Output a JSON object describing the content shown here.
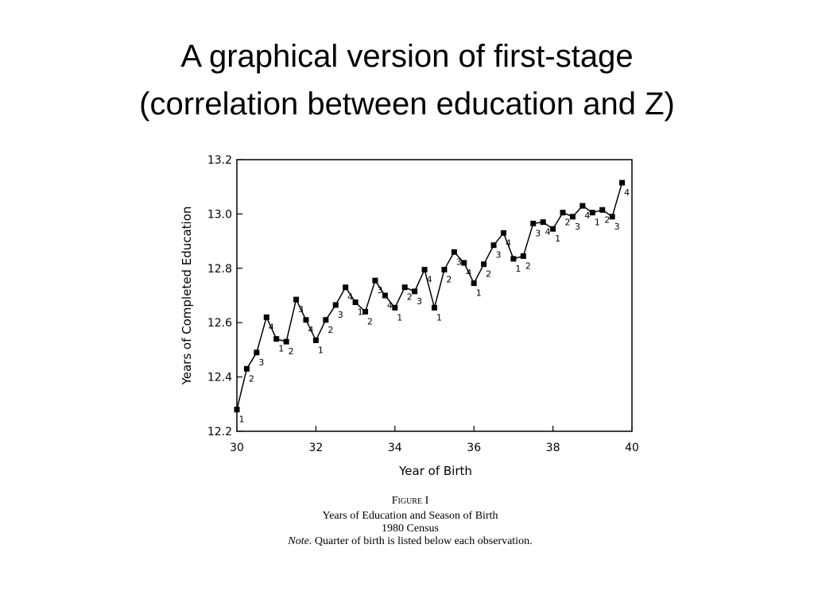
{
  "slide": {
    "title_lines": [
      "A graphical version of first-stage",
      "(correlation between education and Z)"
    ]
  },
  "chart_data": {
    "type": "line",
    "x_label": "Year of Birth",
    "y_label": "Years of Completed Education",
    "x": [
      30,
      30.25,
      30.5,
      30.75,
      31,
      31.25,
      31.5,
      31.75,
      32,
      32.25,
      32.5,
      32.75,
      33,
      33.25,
      33.5,
      33.75,
      34,
      34.25,
      34.5,
      34.75,
      35,
      35.25,
      35.5,
      35.75,
      36,
      36.25,
      36.5,
      36.75,
      37,
      37.25,
      37.5,
      37.75,
      38,
      38.25,
      38.5,
      38.75,
      39,
      39.25,
      39.5,
      39.75
    ],
    "values": [
      12.28,
      12.43,
      12.49,
      12.62,
      12.54,
      12.53,
      12.685,
      12.61,
      12.535,
      12.61,
      12.665,
      12.73,
      12.675,
      12.64,
      12.755,
      12.7,
      12.655,
      12.73,
      12.715,
      12.795,
      12.655,
      12.795,
      12.86,
      12.82,
      12.745,
      12.815,
      12.885,
      12.93,
      12.835,
      12.845,
      12.965,
      12.97,
      12.945,
      13.005,
      12.99,
      13.03,
      13.005,
      13.015,
      12.99,
      13.115
    ],
    "point_labels": [
      "1",
      "2",
      "3",
      "4",
      "1",
      "2",
      "3",
      "4",
      "1",
      "2",
      "3",
      "4",
      "1",
      "2",
      "3",
      "4",
      "1",
      "2",
      "3",
      "4",
      "1",
      "2",
      "3",
      "4",
      "1",
      "2",
      "3",
      "4",
      "1",
      "2",
      "3",
      "4",
      "1",
      "2",
      "3",
      "4",
      "1",
      "2",
      "3",
      "4"
    ],
    "color": "#000000",
    "xlim": [
      30,
      40
    ],
    "xticks": [
      30,
      32,
      34,
      36,
      38,
      40
    ],
    "ylim": [
      12.2,
      13.2
    ],
    "yticks": [
      12.2,
      12.4,
      12.6,
      12.8,
      {
        "value": 13,
        "label": "13.0"
      },
      13.2
    ],
    "grid": false
  },
  "caption": {
    "figure": "Figure I",
    "lines": [
      "Years of Education and Season of Birth",
      "1980 Census"
    ],
    "note_label": "Note.",
    "note_text": "Quarter of birth is listed below each observation."
  }
}
